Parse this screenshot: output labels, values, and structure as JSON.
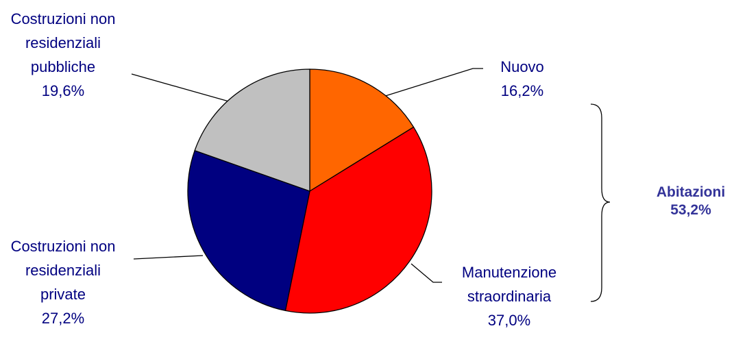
{
  "chart_data": {
    "type": "pie",
    "categories": [
      "Nuovo",
      "Manutenzione straordinaria",
      "Costruzioni non residenziali private",
      "Costruzioni non residenziali pubbliche"
    ],
    "values": [
      16.2,
      37.0,
      27.2,
      19.6
    ],
    "value_labels": [
      "16,2%",
      "37,0%",
      "27,2%",
      "19,6%"
    ],
    "colors": [
      "#FF6600",
      "#FF0000",
      "#000080",
      "#C0C0C0"
    ],
    "annotation": {
      "text": "Abitazioni",
      "value": 53.2,
      "value_label": "53,2%"
    }
  }
}
